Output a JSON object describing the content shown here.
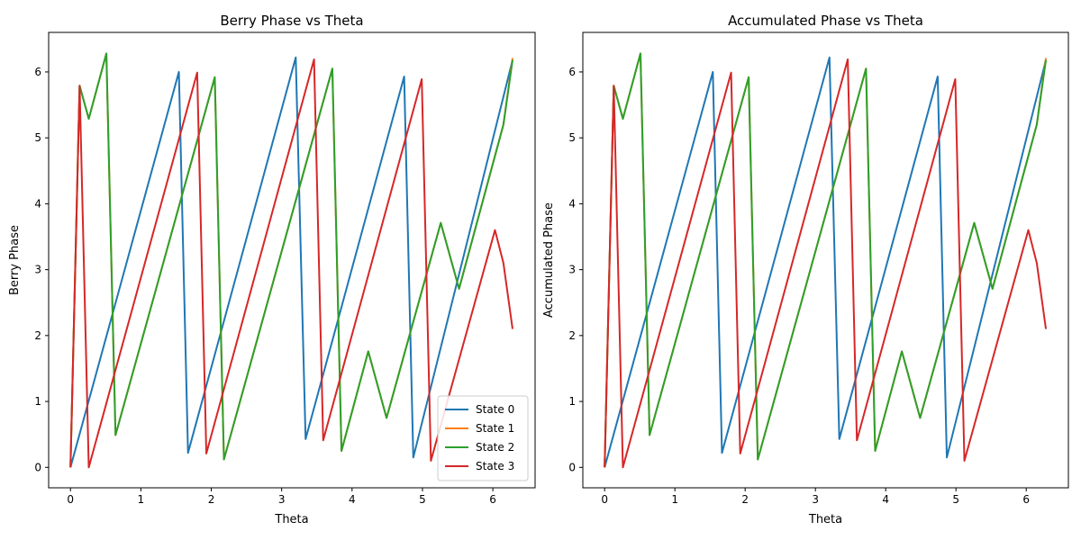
{
  "chart_data": [
    {
      "type": "line",
      "title": "Berry Phase vs Theta",
      "xlabel": "Theta",
      "ylabel": "Berry Phase",
      "xlim": [
        -0.31,
        6.6
      ],
      "ylim": [
        -0.31,
        6.6
      ],
      "xticks": [
        0,
        1,
        2,
        3,
        4,
        5,
        6
      ],
      "yticks": [
        0,
        1,
        2,
        3,
        4,
        5,
        6
      ],
      "grid": false,
      "legend": "lower-right",
      "series": [
        {
          "name": "State 0",
          "color": "#1f77b4",
          "x": [
            0,
            1.54,
            1.67,
            3.2,
            3.34,
            4.74,
            4.87,
            6.28
          ],
          "y": [
            0,
            6.0,
            0.22,
            6.22,
            0.43,
            5.93,
            0.15,
            6.18
          ]
        },
        {
          "name": "State 1",
          "color": "#ff7f0e",
          "x": [
            0,
            0.13,
            0.26,
            0.51,
            0.64,
            2.05,
            2.18,
            3.72,
            3.85,
            4.23,
            4.49,
            5.26,
            5.52,
            6.15,
            6.28
          ],
          "y": [
            0,
            5.79,
            5.29,
            6.28,
            0.49,
            5.92,
            0.12,
            6.05,
            0.25,
            1.76,
            0.75,
            3.71,
            2.71,
            5.2,
            6.21
          ]
        },
        {
          "name": "State 2",
          "color": "#2ca02c",
          "x": [
            0,
            0.13,
            0.26,
            0.51,
            0.64,
            2.05,
            2.18,
            3.72,
            3.85,
            4.23,
            4.49,
            5.26,
            5.52,
            6.15,
            6.28
          ],
          "y": [
            0,
            5.79,
            5.29,
            6.28,
            0.49,
            5.92,
            0.12,
            6.05,
            0.25,
            1.76,
            0.75,
            3.71,
            2.71,
            5.2,
            6.18
          ]
        },
        {
          "name": "State 3",
          "color": "#d62728",
          "x": [
            0,
            0.13,
            0.26,
            1.8,
            1.93,
            3.46,
            3.59,
            4.99,
            5.12,
            6.03,
            6.15,
            6.28
          ],
          "y": [
            0,
            5.79,
            0.0,
            5.99,
            0.21,
            6.19,
            0.41,
            5.89,
            0.1,
            3.6,
            3.1,
            2.1
          ]
        }
      ]
    },
    {
      "type": "line",
      "title": "Accumulated Phase vs Theta",
      "xlabel": "Theta",
      "ylabel": "Accumulated Phase",
      "xlim": [
        -0.31,
        6.6
      ],
      "ylim": [
        -0.31,
        6.6
      ],
      "xticks": [
        0,
        1,
        2,
        3,
        4,
        5,
        6
      ],
      "yticks": [
        0,
        1,
        2,
        3,
        4,
        5,
        6
      ],
      "grid": false,
      "legend": "none",
      "series": [
        {
          "color": "#1f77b4",
          "x": [
            0,
            1.54,
            1.67,
            3.2,
            3.34,
            4.74,
            4.87,
            6.28
          ],
          "y": [
            0,
            6.0,
            0.22,
            6.22,
            0.43,
            5.93,
            0.15,
            6.18
          ]
        },
        {
          "color": "#ff7f0e",
          "x": [
            0,
            0.13,
            0.26,
            0.51,
            0.64,
            2.05,
            2.18,
            3.72,
            3.85,
            4.23,
            4.49,
            5.26,
            5.52,
            6.15,
            6.28
          ],
          "y": [
            0,
            5.79,
            5.29,
            6.28,
            0.49,
            5.92,
            0.12,
            6.05,
            0.25,
            1.76,
            0.75,
            3.71,
            2.71,
            5.2,
            6.21
          ]
        },
        {
          "color": "#2ca02c",
          "x": [
            0,
            0.13,
            0.26,
            0.51,
            0.64,
            2.05,
            2.18,
            3.72,
            3.85,
            4.23,
            4.49,
            5.26,
            5.52,
            6.15,
            6.28
          ],
          "y": [
            0,
            5.79,
            5.29,
            6.28,
            0.49,
            5.92,
            0.12,
            6.05,
            0.25,
            1.76,
            0.75,
            3.71,
            2.71,
            5.2,
            6.18
          ]
        },
        {
          "color": "#d62728",
          "x": [
            0,
            0.13,
            0.26,
            1.8,
            1.93,
            3.46,
            3.59,
            4.99,
            5.12,
            6.03,
            6.15,
            6.28
          ],
          "y": [
            0,
            5.79,
            0.0,
            5.99,
            0.21,
            6.19,
            0.41,
            5.89,
            0.1,
            3.6,
            3.1,
            2.1
          ]
        }
      ]
    }
  ]
}
